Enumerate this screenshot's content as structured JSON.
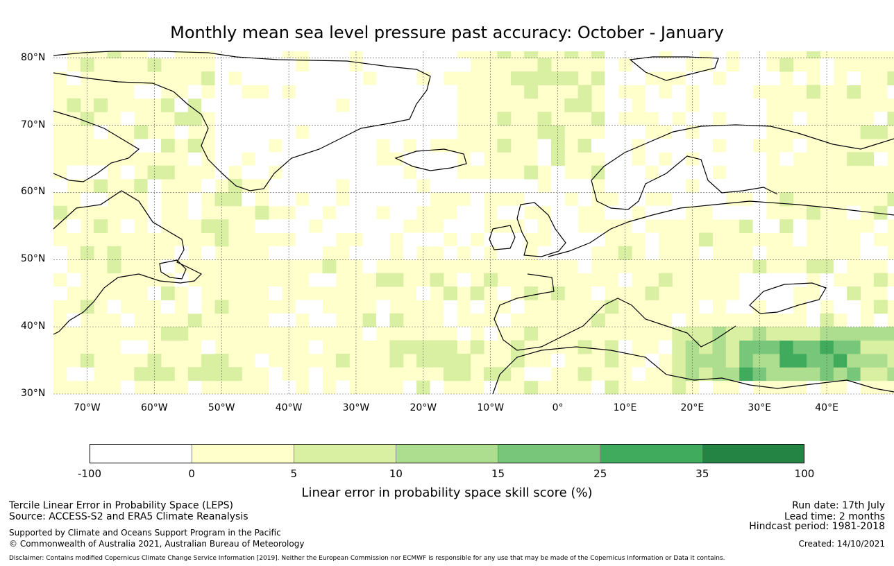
{
  "title": "Monthly mean sea level pressure past accuracy: October - January",
  "map": {
    "lat_labels": [
      "80°N",
      "70°N",
      "60°N",
      "50°N",
      "40°N",
      "30°N"
    ],
    "lon_labels": [
      "70°W",
      "60°W",
      "50°W",
      "40°W",
      "30°W",
      "20°W",
      "10°W",
      "0°",
      "10°E",
      "20°E",
      "30°E",
      "40°E"
    ],
    "lon_range": [
      -75,
      50
    ],
    "lat_range": [
      30,
      81
    ],
    "grid": true
  },
  "colorbar": {
    "label": "Linear error in probability space skill score (%)",
    "ticks": [
      "-100",
      "0",
      "5",
      "10",
      "15",
      "25",
      "35",
      "100"
    ],
    "colors": [
      "#ffffff",
      "#ffffcc",
      "#d9f0a3",
      "#addd8e",
      "#78c679",
      "#41ab5d",
      "#238443"
    ]
  },
  "footer": {
    "left_line1": "Tercile Linear Error in Probability Space (LEPS)",
    "left_line2": "Source: ACCESS-S2 and ERA5 Climate Reanalysis",
    "left_line3": "Supported by Climate and Oceans Support Program in the Pacific",
    "left_line4": "© Commonwealth of Australia 2021, Australian Bureau of Meteorology",
    "right_line1": "Run date: 17th July",
    "right_line2": "Lead time: 2 months",
    "right_line3": "Hindcast period: 1981-2018",
    "right_line4": "Created: 14/10/2021",
    "disclaimer": "Disclaimer: Contains modified Copernicus Climate Change Service Information [2019]. Neither the European Commission nor ECMWF is responsible for any use that may be made of the Copernicus Information or Data it contains."
  }
}
